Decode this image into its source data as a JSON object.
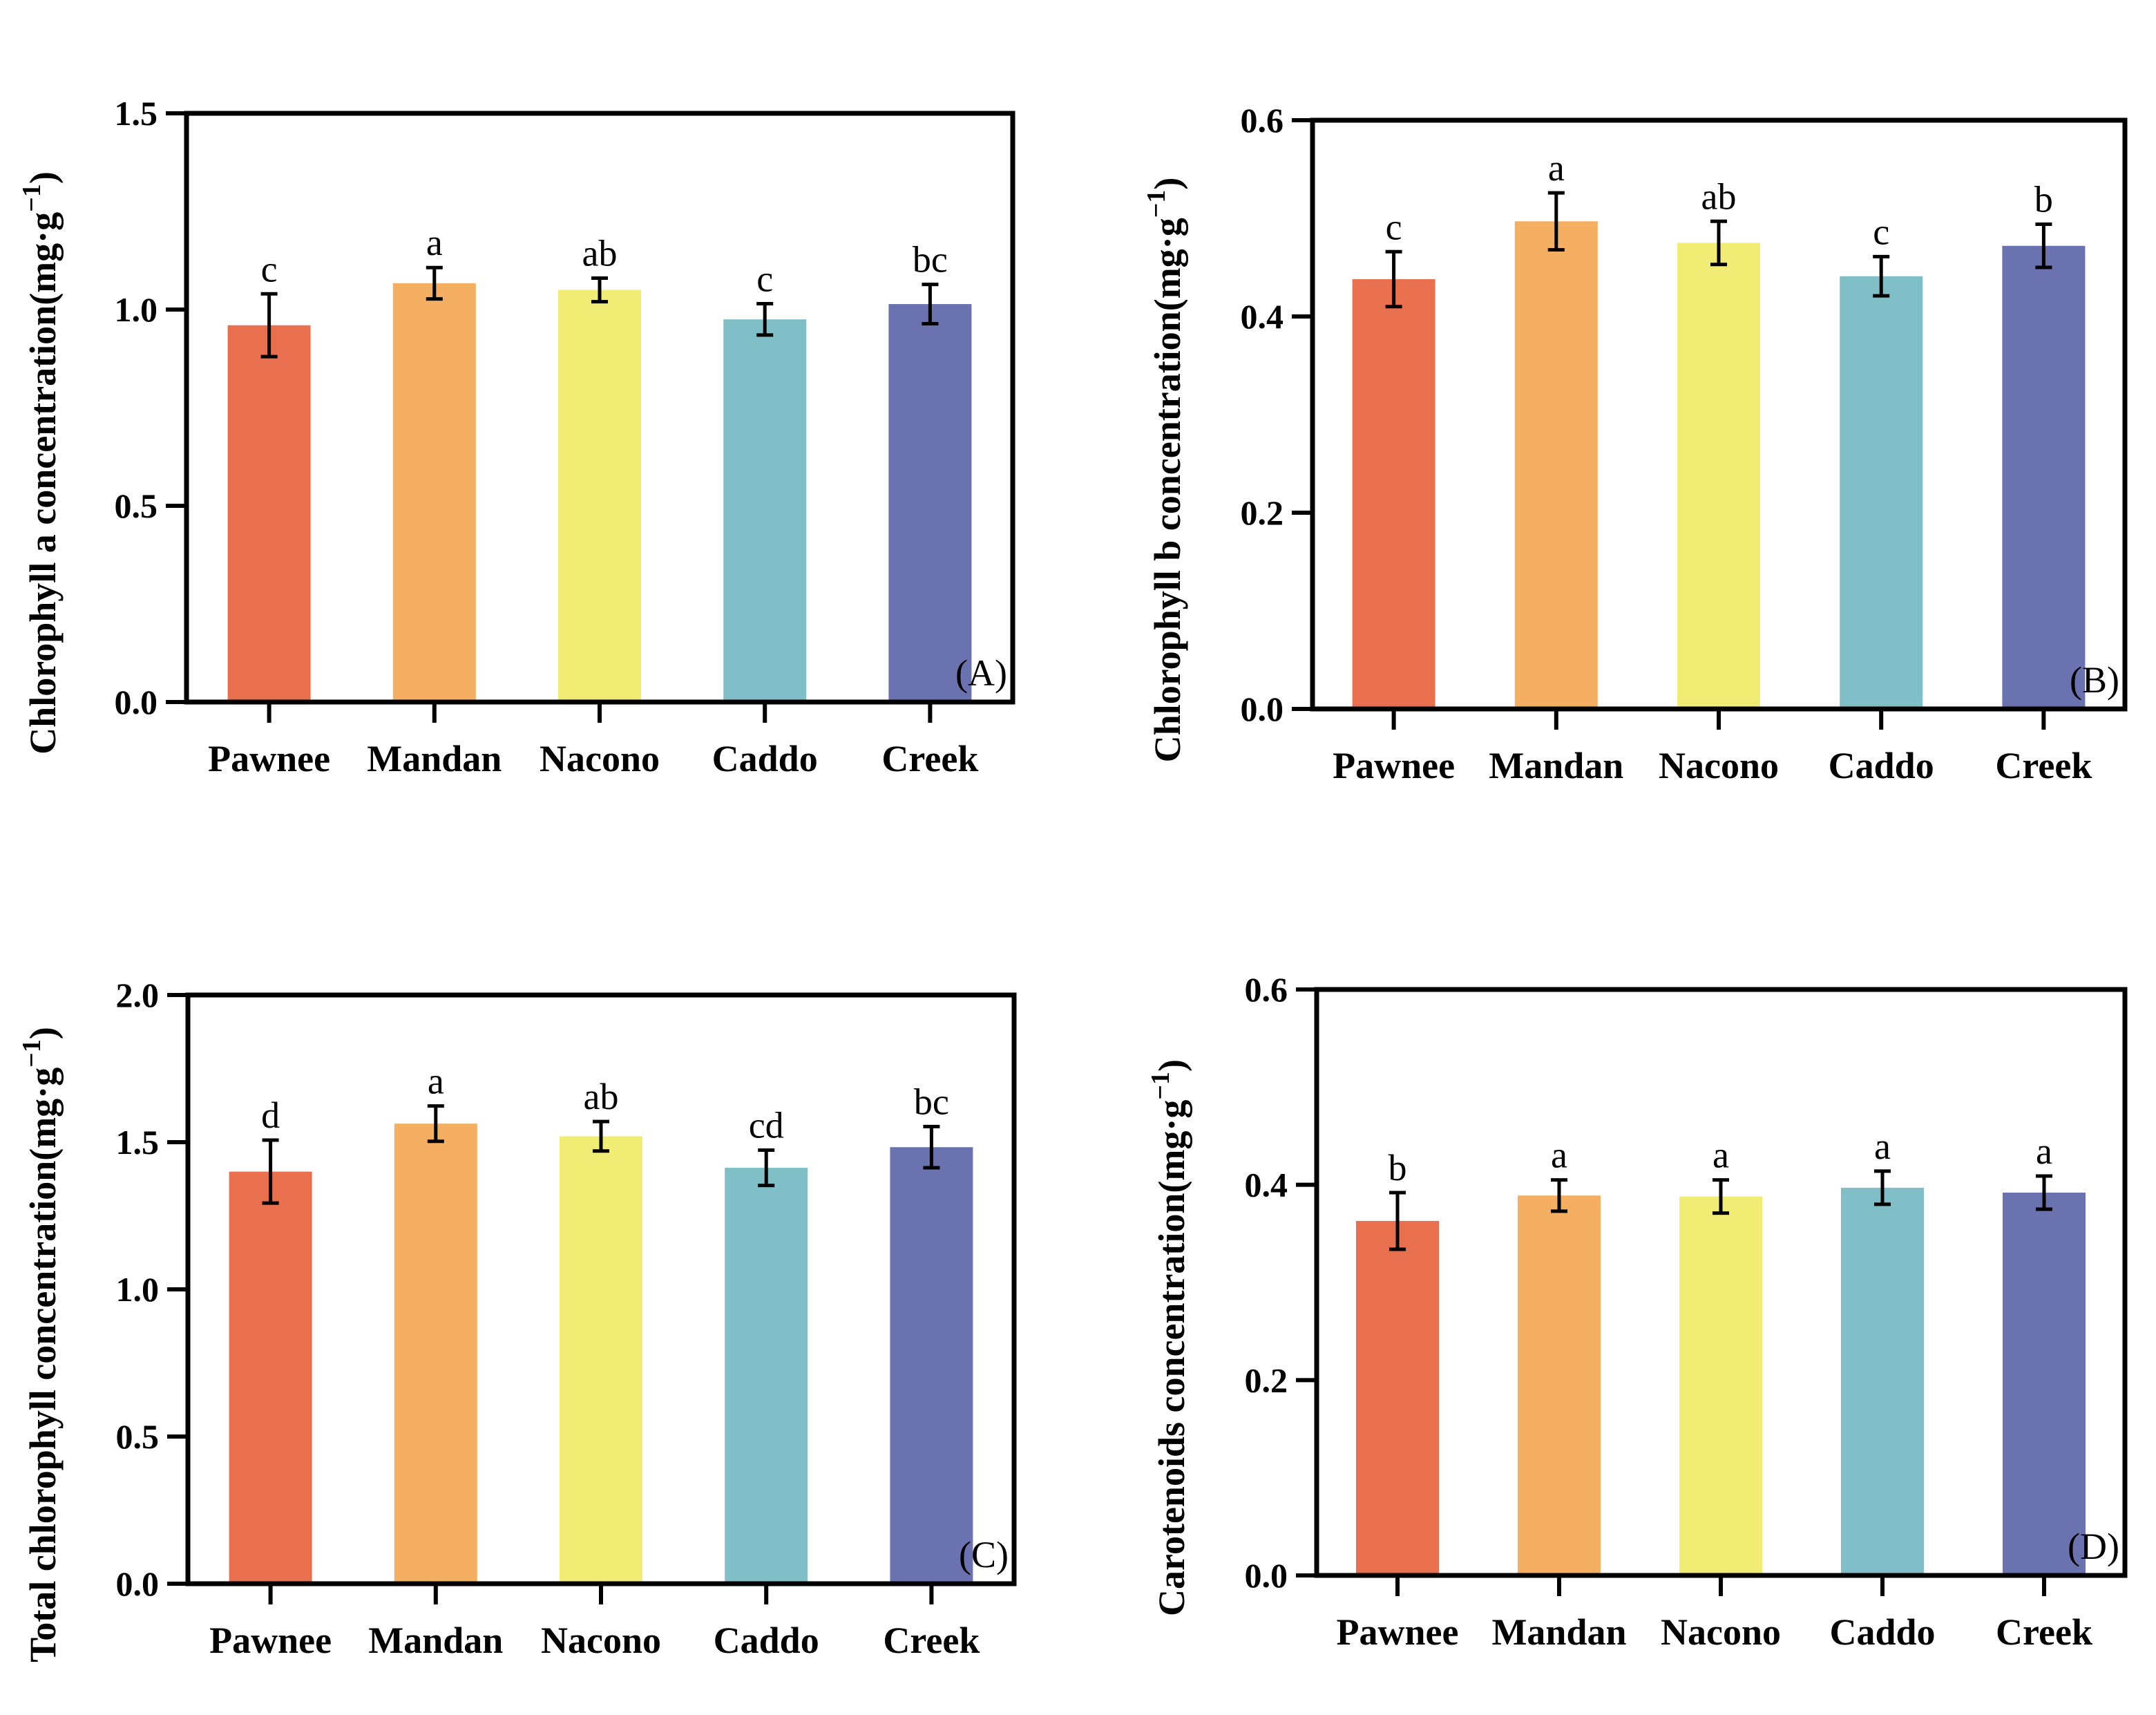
{
  "colors": [
    "#E8704F",
    "#F4AF62",
    "#F0EC74",
    "#80BFC7",
    "#6A72AF"
  ],
  "chart_data": [
    {
      "type": "bar",
      "panel_label": "(A)",
      "categories": [
        "Pawnee",
        "Mandan",
        "Nacono",
        "Caddo",
        "Creek"
      ],
      "values": [
        0.96,
        1.067,
        1.05,
        0.975,
        1.014
      ],
      "errors": [
        0.08,
        0.04,
        0.03,
        0.04,
        0.05
      ],
      "letters": [
        "c",
        "a",
        "ab",
        "c",
        "bc"
      ],
      "ylabel": "Chlorophyll a concentration(mg·g",
      "ylabel_sup": "−1",
      "ylabel_end": ")",
      "ylim": [
        0,
        1.5
      ],
      "yticks": [
        "0.0",
        "0.5",
        "1.0",
        "1.5"
      ],
      "ytick_values": [
        0,
        0.5,
        1.0,
        1.5
      ]
    },
    {
      "type": "bar",
      "panel_label": "(B)",
      "categories": [
        "Pawnee",
        "Mandan",
        "Nacono",
        "Caddo",
        "Creek"
      ],
      "values": [
        0.438,
        0.497,
        0.475,
        0.441,
        0.472
      ],
      "errors": [
        0.028,
        0.029,
        0.022,
        0.02,
        0.022
      ],
      "letters": [
        "c",
        "a",
        "ab",
        "c",
        "b"
      ],
      "ylabel": "Chlorophyll b concentration(mg·g",
      "ylabel_sup": "−1",
      "ylabel_end": ")",
      "ylim": [
        0,
        0.6
      ],
      "yticks": [
        "0.0",
        "0.2",
        "0.4",
        "0.6"
      ],
      "ytick_values": [
        0,
        0.2,
        0.4,
        0.6
      ]
    },
    {
      "type": "bar",
      "panel_label": "(C)",
      "categories": [
        "Pawnee",
        "Mandan",
        "Nacono",
        "Caddo",
        "Creek"
      ],
      "values": [
        1.4,
        1.563,
        1.52,
        1.413,
        1.483
      ],
      "errors": [
        0.107,
        0.06,
        0.05,
        0.06,
        0.07
      ],
      "letters": [
        "d",
        "a",
        "ab",
        "cd",
        "bc"
      ],
      "ylabel": "Total chlorophyll concentration(mg·g",
      "ylabel_sup": "−1",
      "ylabel_end": ")",
      "ylim": [
        0,
        2.0
      ],
      "yticks": [
        "0.0",
        "0.5",
        "1.0",
        "1.5",
        "2.0"
      ],
      "ytick_values": [
        0,
        0.5,
        1.0,
        1.5,
        2.0
      ]
    },
    {
      "type": "bar",
      "panel_label": "(D)",
      "categories": [
        "Pawnee",
        "Mandan",
        "Nacono",
        "Caddo",
        "Creek"
      ],
      "values": [
        0.363,
        0.389,
        0.388,
        0.397,
        0.392
      ],
      "errors": [
        0.029,
        0.016,
        0.017,
        0.017,
        0.017
      ],
      "letters": [
        "b",
        "a",
        "a",
        "a",
        "a"
      ],
      "ylabel": "Carotenoids concentration(mg·g",
      "ylabel_sup": "−1",
      "ylabel_end": ")",
      "ylim": [
        0,
        0.6
      ],
      "yticks": [
        "0.0",
        "0.2",
        "0.4",
        "0.6"
      ],
      "ytick_values": [
        0,
        0.2,
        0.4,
        0.6
      ]
    }
  ]
}
